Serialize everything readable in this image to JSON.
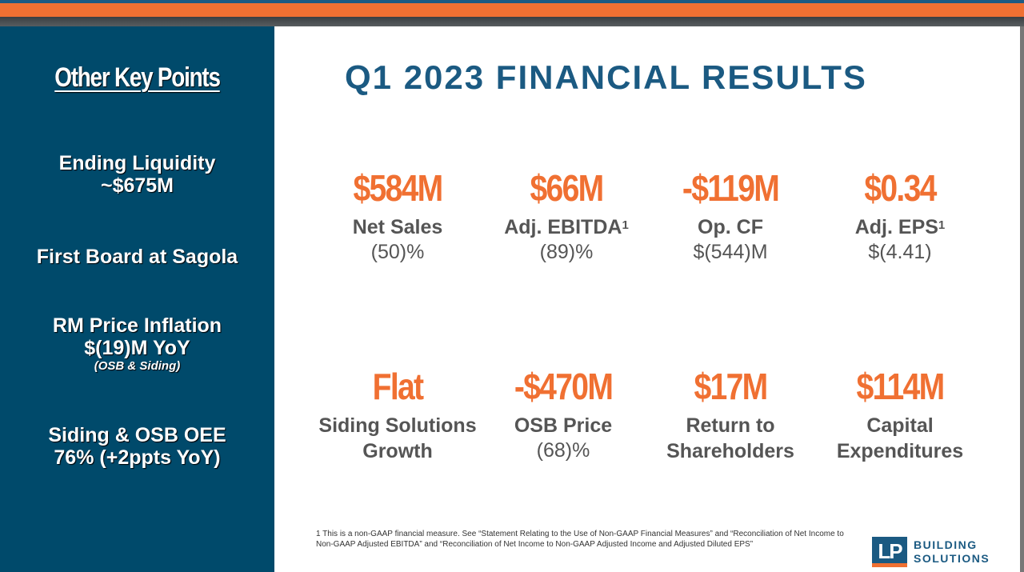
{
  "sidebar": {
    "title": "Other Key Points",
    "points": [
      {
        "line1": "Ending Liquidity",
        "line2": "~$675M"
      },
      {
        "line1": "First Board at Sagola"
      },
      {
        "line1": "RM Price Inflation",
        "line2": "$(19)M YoY",
        "sub": "(OSB & Siding)"
      },
      {
        "line1": "Siding & OSB OEE",
        "line2": "76% (+2ppts YoY)"
      }
    ]
  },
  "main": {
    "title": "Q1 2023 FINANCIAL RESULTS",
    "metrics": [
      {
        "value": "$584M",
        "label": "Net Sales",
        "change": "(50)%"
      },
      {
        "value": "$66M",
        "label": "Adj. EBITDA",
        "sup": "1",
        "change": "(89)%"
      },
      {
        "value": "-$119M",
        "label": "Op. CF",
        "change": "$(544)M"
      },
      {
        "value": "$0.34",
        "label": "Adj. EPS",
        "sup": "1",
        "change": "$(4.41)"
      },
      {
        "value": "Flat",
        "label": "Siding Solutions",
        "label2": "Growth"
      },
      {
        "value": "-$470M",
        "label": "OSB Price",
        "change": "(68)%"
      },
      {
        "value": "$17M",
        "label": "Return to",
        "label2": "Shareholders"
      },
      {
        "value": "$114M",
        "label": "Capital",
        "label2": "Expenditures"
      }
    ],
    "footnote": "1  This is a non-GAAP financial measure. See “Statement Relating to the Use of Non-GAAP Financial Measures” and “Reconciliation of Net Income to Non-GAAP Adjusted EBITDA” and “Reconciliation of Net Income to Non-GAAP Adjusted Income and Adjusted Diluted EPS”",
    "logo": {
      "mark": "LP",
      "line1": "BUILDING",
      "line2": "SOLUTIONS"
    }
  },
  "colors": {
    "navy": "#004a6b",
    "orange": "#f07032",
    "blue": "#1b5a82"
  }
}
